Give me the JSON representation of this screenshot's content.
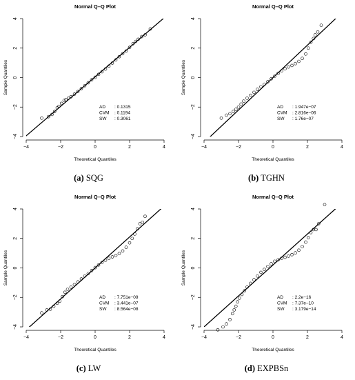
{
  "chart_data": [
    {
      "type": "scatter",
      "title": "Normal Q–Q Plot",
      "xlabel": "Theoretical Quantiles",
      "ylabel": "Sample Quantiles",
      "xlim": [
        -4,
        4
      ],
      "ylim": [
        -4,
        4
      ],
      "xticks": [
        -4,
        -2,
        0,
        2,
        4
      ],
      "yticks": [
        -4,
        -2,
        0,
        2,
        4
      ],
      "reference_line": {
        "intercept": 0.05,
        "slope": 1.0
      },
      "stats": [
        {
          "label": "AD",
          "value": "0.1315"
        },
        {
          "label": "CVM",
          "value": "0.1194"
        },
        {
          "label": "SW",
          "value": "0.3061"
        }
      ],
      "caption": {
        "tag": "(a)",
        "name": "SQG"
      },
      "points": [
        [
          -3.1,
          -2.75
        ],
        [
          -2.7,
          -2.65
        ],
        [
          -2.5,
          -2.5
        ],
        [
          -2.35,
          -2.3
        ],
        [
          -2.2,
          -2.05
        ],
        [
          -2.1,
          -1.95
        ],
        [
          -1.95,
          -1.75
        ],
        [
          -1.8,
          -1.55
        ],
        [
          -1.7,
          -1.5
        ],
        [
          -1.55,
          -1.4
        ],
        [
          -1.4,
          -1.3
        ],
        [
          -1.2,
          -1.12
        ],
        [
          -1.0,
          -0.95
        ],
        [
          -0.8,
          -0.75
        ],
        [
          -0.6,
          -0.55
        ],
        [
          -0.4,
          -0.35
        ],
        [
          -0.2,
          -0.15
        ],
        [
          0.0,
          0.02
        ],
        [
          0.2,
          0.22
        ],
        [
          0.4,
          0.4
        ],
        [
          0.6,
          0.58
        ],
        [
          0.8,
          0.78
        ],
        [
          1.0,
          0.98
        ],
        [
          1.2,
          1.2
        ],
        [
          1.4,
          1.42
        ],
        [
          1.6,
          1.62
        ],
        [
          1.8,
          1.8
        ],
        [
          2.0,
          2.05
        ],
        [
          2.2,
          2.3
        ],
        [
          2.35,
          2.45
        ],
        [
          2.5,
          2.6
        ],
        [
          2.7,
          2.78
        ],
        [
          2.9,
          2.9
        ],
        [
          3.2,
          3.3
        ]
      ]
    },
    {
      "type": "scatter",
      "title": "Normal Q–Q Plot",
      "xlabel": "Theoretical Quantiles",
      "ylabel": "Sample Quantiles",
      "xlim": [
        -4,
        4
      ],
      "ylim": [
        -4,
        4
      ],
      "xticks": [
        -4,
        -2,
        0,
        2,
        4
      ],
      "yticks": [
        -4,
        -2,
        0,
        2,
        4
      ],
      "reference_line": {
        "intercept": 0.0,
        "slope": 1.1
      },
      "stats": [
        {
          "label": "AD",
          "value": "1.947e−07"
        },
        {
          "label": "CVM",
          "value": "2.816e−06"
        },
        {
          "label": "SW",
          "value": "1.76e−07"
        }
      ],
      "caption": {
        "tag": "(b)",
        "name": "TGHN"
      },
      "points": [
        [
          -3.0,
          -2.75
        ],
        [
          -2.7,
          -2.55
        ],
        [
          -2.5,
          -2.45
        ],
        [
          -2.3,
          -2.3
        ],
        [
          -2.15,
          -2.15
        ],
        [
          -2.0,
          -2.0
        ],
        [
          -1.85,
          -1.8
        ],
        [
          -1.7,
          -1.6
        ],
        [
          -1.5,
          -1.4
        ],
        [
          -1.3,
          -1.2
        ],
        [
          -1.1,
          -1.0
        ],
        [
          -0.9,
          -0.8
        ],
        [
          -0.7,
          -0.62
        ],
        [
          -0.5,
          -0.45
        ],
        [
          -0.3,
          -0.28
        ],
        [
          -0.1,
          -0.08
        ],
        [
          0.1,
          0.1
        ],
        [
          0.3,
          0.28
        ],
        [
          0.5,
          0.45
        ],
        [
          0.7,
          0.6
        ],
        [
          0.9,
          0.72
        ],
        [
          1.1,
          0.82
        ],
        [
          1.3,
          0.95
        ],
        [
          1.5,
          1.1
        ],
        [
          1.7,
          1.3
        ],
        [
          1.9,
          1.6
        ],
        [
          2.05,
          2.0
        ],
        [
          2.2,
          2.4
        ],
        [
          2.35,
          2.65
        ],
        [
          2.45,
          2.9
        ],
        [
          2.6,
          3.1
        ],
        [
          2.8,
          3.55
        ]
      ]
    },
    {
      "type": "scatter",
      "title": "Normal Q–Q Plot",
      "xlabel": "Theoretical Quantiles",
      "ylabel": "Sample Quantiles",
      "xlim": [
        -4,
        4
      ],
      "ylim": [
        -4,
        4
      ],
      "xticks": [
        -4,
        -2,
        0,
        2,
        4
      ],
      "yticks": [
        -4,
        -2,
        0,
        2,
        4
      ],
      "reference_line": {
        "intercept": 0.0,
        "slope": 1.05
      },
      "stats": [
        {
          "label": "AD",
          "value": "7.751e−09"
        },
        {
          "label": "CVM",
          "value": "3.441e−07"
        },
        {
          "label": "SW",
          "value": "8.564e−08"
        }
      ],
      "caption": {
        "tag": "(c)",
        "name": "LW"
      },
      "points": [
        [
          -3.1,
          -3.05
        ],
        [
          -2.8,
          -2.85
        ],
        [
          -2.6,
          -2.8
        ],
        [
          -2.4,
          -2.6
        ],
        [
          -2.2,
          -2.4
        ],
        [
          -2.05,
          -2.25
        ],
        [
          -1.9,
          -1.95
        ],
        [
          -1.75,
          -1.65
        ],
        [
          -1.6,
          -1.45
        ],
        [
          -1.4,
          -1.3
        ],
        [
          -1.2,
          -1.12
        ],
        [
          -1.0,
          -0.95
        ],
        [
          -0.8,
          -0.75
        ],
        [
          -0.6,
          -0.55
        ],
        [
          -0.4,
          -0.38
        ],
        [
          -0.2,
          -0.18
        ],
        [
          0.0,
          0.02
        ],
        [
          0.2,
          0.2
        ],
        [
          0.4,
          0.38
        ],
        [
          0.6,
          0.52
        ],
        [
          0.8,
          0.65
        ],
        [
          1.0,
          0.75
        ],
        [
          1.2,
          0.85
        ],
        [
          1.4,
          0.98
        ],
        [
          1.6,
          1.15
        ],
        [
          1.8,
          1.4
        ],
        [
          2.0,
          1.7
        ],
        [
          2.15,
          2.0
        ],
        [
          2.3,
          2.3
        ],
        [
          2.45,
          2.65
        ],
        [
          2.6,
          3.0
        ],
        [
          2.75,
          3.1
        ],
        [
          2.9,
          3.5
        ]
      ]
    },
    {
      "type": "scatter",
      "title": "Normal Q–Q Plot",
      "xlabel": "Theoretical Quantiles",
      "ylabel": "Sample Quantiles",
      "xlim": [
        -4,
        4
      ],
      "ylim": [
        -4,
        4
      ],
      "xticks": [
        -4,
        -2,
        0,
        2,
        4
      ],
      "yticks": [
        -4,
        -2,
        0,
        2,
        4
      ],
      "reference_line": {
        "intercept": 0.2,
        "slope": 1.05
      },
      "stats": [
        {
          "label": "AD",
          "value": "2.2e−16"
        },
        {
          "label": "CVM",
          "value": "7.37e−10"
        },
        {
          "label": "SW",
          "value": "3.179e−14"
        }
      ],
      "caption": {
        "tag": "(d)",
        "name": "EXPBSn"
      },
      "points": [
        [
          -3.2,
          -4.2
        ],
        [
          -2.9,
          -4.0
        ],
        [
          -2.7,
          -3.8
        ],
        [
          -2.5,
          -3.5
        ],
        [
          -2.35,
          -3.1
        ],
        [
          -2.25,
          -2.85
        ],
        [
          -2.15,
          -2.6
        ],
        [
          -2.05,
          -2.3
        ],
        [
          -1.95,
          -2.05
        ],
        [
          -1.8,
          -1.8
        ],
        [
          -1.65,
          -1.55
        ],
        [
          -1.5,
          -1.3
        ],
        [
          -1.3,
          -1.05
        ],
        [
          -1.1,
          -0.8
        ],
        [
          -0.9,
          -0.55
        ],
        [
          -0.7,
          -0.3
        ],
        [
          -0.5,
          -0.1
        ],
        [
          -0.3,
          0.1
        ],
        [
          -0.1,
          0.28
        ],
        [
          0.1,
          0.45
        ],
        [
          0.3,
          0.55
        ],
        [
          0.5,
          0.65
        ],
        [
          0.7,
          0.72
        ],
        [
          0.9,
          0.8
        ],
        [
          1.1,
          0.9
        ],
        [
          1.3,
          1.02
        ],
        [
          1.5,
          1.2
        ],
        [
          1.7,
          1.45
        ],
        [
          1.9,
          1.75
        ],
        [
          2.05,
          2.05
        ],
        [
          2.2,
          2.4
        ],
        [
          2.35,
          2.6
        ],
        [
          2.5,
          2.6
        ],
        [
          2.65,
          3.0
        ],
        [
          3.0,
          4.3
        ]
      ]
    }
  ]
}
